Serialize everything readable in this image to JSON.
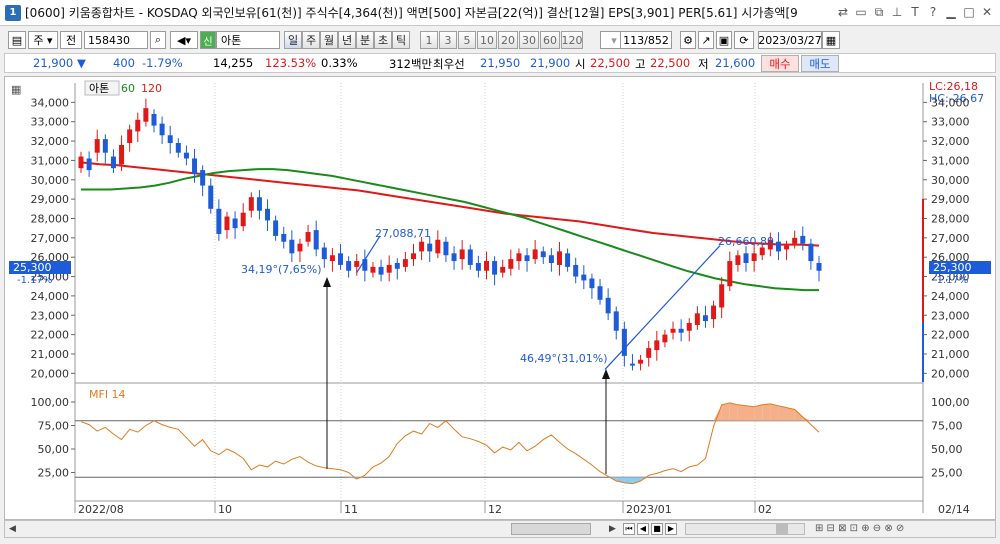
{
  "window": {
    "badge": "1",
    "title": "[0600] 키움종합차트 - KOSDAQ 외국인보유[61(천)] 주식수[4,364(천)] 액면[500] 자본금[22(억)] 결산[12월] EPS[3,901] PER[5.61] 시가총액[9"
  },
  "toolbar": {
    "period_select": "주",
    "category": "전",
    "code": "158430",
    "stock_flag": "신",
    "stock_name": "아톤",
    "periods": [
      "일",
      "주",
      "월",
      "년",
      "분",
      "초",
      "틱"
    ],
    "intervals": [
      "1",
      "3",
      "5",
      "10",
      "20",
      "30",
      "60",
      "120"
    ],
    "count": "113/852",
    "date": "2023/03/27"
  },
  "quote": {
    "price": "21,900",
    "change": "400",
    "change_pct": "-1.79%",
    "volume": "14,255",
    "vol_ratio": "123.53%",
    "turnover": "0.33%",
    "amount": "312백만",
    "best_label": "최우선",
    "best_ask": "21,950",
    "best_bid": "21,900",
    "open_label": "시",
    "open": "22,500",
    "high_label": "고",
    "high": "22,500",
    "low_label": "저",
    "low": "21,600",
    "buy": "매수",
    "sell": "매도"
  },
  "chart_data": {
    "type": "candlestick",
    "legend": {
      "name": "아톤",
      "ma1": "60",
      "ma2": "120"
    },
    "y_ticks": [
      "34,000",
      "33,000",
      "32,000",
      "31,000",
      "30,000",
      "29,000",
      "28,000",
      "27,000",
      "26,000",
      "25,000",
      "24,000",
      "23,000",
      "22,000",
      "21,000",
      "20,000"
    ],
    "right_extra_ticks": [
      "28,000",
      "27,000"
    ],
    "ylim": [
      19500,
      35000
    ],
    "lc": "LC:26,18",
    "hc": "HC:-26,67",
    "current_price_label": "25,300",
    "current_pct_label": "-1.17%",
    "annotations": {
      "line1_start": "34,19°(7,65%)",
      "line1_end": "27,088,71",
      "line2_start": "46,49°(31,01%)",
      "line2_end": "26,660,89"
    },
    "candles_close": [
      31200,
      30500,
      32100,
      31400,
      30600,
      31800,
      32600,
      33100,
      33700,
      32800,
      32300,
      31900,
      31400,
      31100,
      30300,
      29700,
      28500,
      27200,
      28100,
      27500,
      28300,
      29100,
      28400,
      27900,
      27100,
      26800,
      26200,
      26700,
      27300,
      26400,
      25900,
      26100,
      25600,
      25300,
      25800,
      25300,
      25500,
      25100,
      25600,
      25400,
      25900,
      26200,
      26800,
      26300,
      26900,
      26100,
      25800,
      26400,
      25600,
      25300,
      25800,
      25100,
      25500,
      25900,
      26200,
      25800,
      26400,
      26000,
      25700,
      26300,
      25500,
      25000,
      24800,
      24400,
      23800,
      23100,
      22200,
      20900,
      20400,
      20700,
      21300,
      21700,
      22000,
      22300,
      22100,
      22600,
      23100,
      22700,
      23500,
      24600,
      25800,
      26100,
      25700,
      26200,
      26500,
      26900,
      26300,
      26600,
      27000,
      26700,
      25800,
      25300
    ],
    "candles_open": [
      30600,
      31100,
      31400,
      32100,
      31200,
      30800,
      31900,
      32500,
      33000,
      33400,
      32900,
      32300,
      31900,
      31400,
      31100,
      30500,
      29700,
      28500,
      27400,
      28000,
      27600,
      28400,
      29100,
      28500,
      27900,
      27200,
      26900,
      26300,
      26800,
      27400,
      26500,
      25800,
      26200,
      25800,
      25500,
      25900,
      25200,
      25500,
      25200,
      25700,
      25500,
      25900,
      26300,
      26700,
      26200,
      26800,
      26200,
      25900,
      26400,
      25700,
      25300,
      25800,
      25200,
      25400,
      25800,
      26100,
      25900,
      26300,
      26100,
      25600,
      26200,
      25600,
      25100,
      24900,
      24500,
      23900,
      23200,
      22300,
      20500,
      20500,
      20800,
      21200,
      21600,
      22100,
      22300,
      22200,
      22500,
      23000,
      22800,
      23400,
      24500,
      25600,
      26200,
      25800,
      26100,
      26400,
      26800,
      26400,
      26700,
      27100,
      26700,
      25700
    ],
    "ma60_points": [
      29500,
      29500,
      29500,
      29550,
      29600,
      29700,
      29850,
      30050,
      30200,
      30350,
      30450,
      30500,
      30550,
      30550,
      30500,
      30400,
      30300,
      30200,
      30050,
      29900,
      29750,
      29600,
      29450,
      29300,
      29150,
      29000,
      28850,
      28650,
      28450,
      28250,
      28050,
      27800,
      27550,
      27300,
      27050,
      26800,
      26550,
      26300,
      26050,
      25800,
      25550,
      25300,
      25100,
      24900,
      24750,
      24600,
      24500,
      24400,
      24350,
      24300,
      24300
    ],
    "ma120_points": [
      30900,
      30800,
      30750,
      30650,
      30550,
      30450,
      30350,
      30250,
      30150,
      30050,
      29950,
      29850,
      29750,
      29650,
      29550,
      29450,
      29300,
      29150,
      29000,
      28850,
      28700,
      28550,
      28400,
      28250,
      28150,
      28050,
      27950,
      27850,
      27700,
      27550,
      27400,
      27250,
      27150,
      27050,
      26950,
      26850,
      26750,
      26700,
      26650,
      26650,
      26600
    ],
    "mfi": {
      "name": "MFI 14",
      "ticks": [
        "100,00",
        "75,00",
        "50,00",
        "25,00"
      ],
      "values": [
        79,
        76,
        69,
        73,
        66,
        60,
        71,
        68,
        75,
        80,
        76,
        73,
        71,
        62,
        53,
        60,
        48,
        44,
        50,
        46,
        40,
        28,
        33,
        31,
        37,
        34,
        39,
        42,
        36,
        32,
        30,
        29,
        28,
        25,
        18,
        22,
        31,
        35,
        42,
        56,
        64,
        69,
        66,
        77,
        73,
        80,
        71,
        63,
        61,
        58,
        54,
        46,
        52,
        49,
        57,
        48,
        53,
        60,
        65,
        57,
        50,
        45,
        39,
        33,
        26,
        21,
        16,
        14,
        13,
        16,
        22,
        24,
        27,
        29,
        26,
        31,
        33,
        40,
        74,
        97,
        99,
        97,
        96,
        95,
        97,
        98,
        96,
        94,
        92,
        84,
        76,
        68
      ]
    },
    "x_ticks": [
      "2022/08",
      "10",
      "11",
      "12",
      "2023/01",
      "02",
      "02/14"
    ]
  }
}
